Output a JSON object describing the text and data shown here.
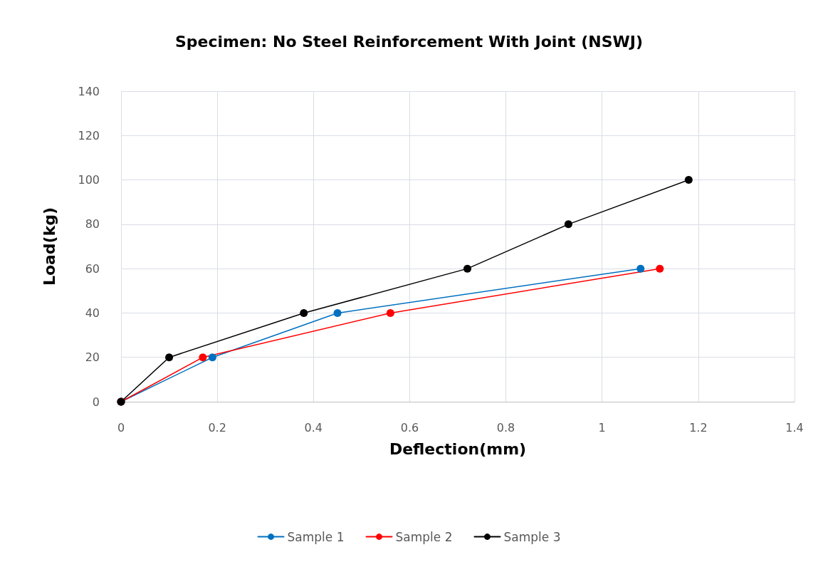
{
  "chart_data": {
    "type": "line",
    "title": "Specimen: No Steel Reinforcement With Joint (NSWJ)",
    "xlabel": "Deflection(mm)",
    "ylabel": "Load(kg)",
    "xlim": [
      0,
      1.4
    ],
    "xticks": [
      0,
      0.2,
      0.4,
      0.6,
      0.8,
      1,
      1.2,
      1.4
    ],
    "ylim": [
      0,
      140
    ],
    "yticks": [
      0,
      20,
      40,
      60,
      80,
      100,
      120,
      140
    ],
    "grid": true,
    "legend": "bottom",
    "marker": "circle",
    "line_style": "solid",
    "series": [
      {
        "name": "Sample 1",
        "color": "#0070c0",
        "x": [
          0,
          0.19,
          0.45,
          1.08
        ],
        "values": [
          0,
          20,
          40,
          60
        ]
      },
      {
        "name": "Sample 2",
        "color": "#ff0000",
        "x": [
          0,
          0.17,
          0.56,
          1.12
        ],
        "values": [
          0,
          20,
          40,
          60
        ]
      },
      {
        "name": "Sample 3",
        "color": "#000000",
        "x": [
          0,
          0.1,
          0.38,
          0.72,
          0.93,
          1.18
        ],
        "values": [
          0,
          20,
          40,
          60,
          80,
          100
        ]
      }
    ]
  }
}
